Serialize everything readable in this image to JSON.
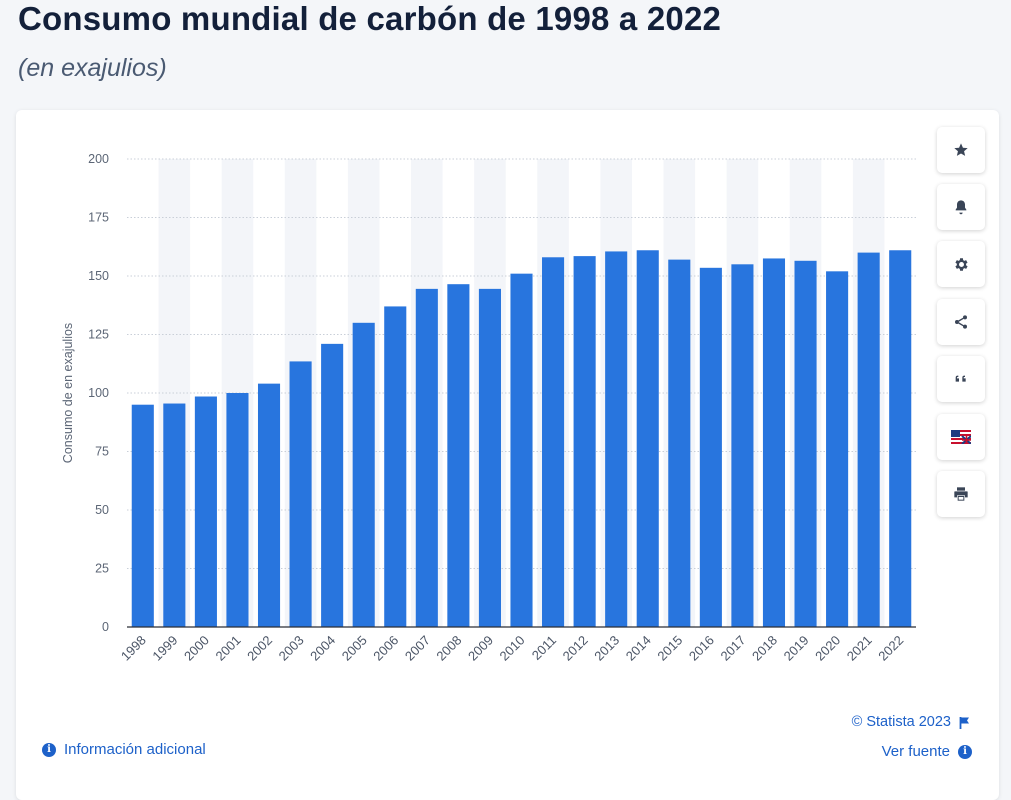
{
  "header": {
    "title": "Consumo mundial de carbón de 1998 a 2022",
    "subtitle": "(en exajulios)"
  },
  "chart_data": {
    "type": "bar",
    "categories": [
      "1998",
      "1999",
      "2000",
      "2001",
      "2002",
      "2003",
      "2004",
      "2005",
      "2006",
      "2007",
      "2008",
      "2009",
      "2010",
      "2011",
      "2012",
      "2013",
      "2014",
      "2015",
      "2016",
      "2017",
      "2018",
      "2019",
      "2020",
      "2021",
      "2022"
    ],
    "values": [
      95,
      95.5,
      98.5,
      100,
      104,
      113.5,
      121,
      130,
      137,
      144.5,
      146.5,
      144.5,
      151,
      158,
      158.5,
      160.5,
      161,
      157,
      153.5,
      155,
      157.5,
      156.5,
      152,
      160,
      161
    ],
    "ylabel": "Consumo de en exajulios",
    "xlabel": "",
    "ylim": [
      0,
      200
    ],
    "yticks": [
      0,
      25,
      50,
      75,
      100,
      125,
      150,
      175,
      200
    ],
    "grid": true,
    "bar_color": "#2875de",
    "alt_band_color": "#f3f5f9"
  },
  "sidebar": {
    "buttons": [
      {
        "name": "star-icon",
        "label": "favorite"
      },
      {
        "name": "bell-icon",
        "label": "alert"
      },
      {
        "name": "gear-icon",
        "label": "settings"
      },
      {
        "name": "share-icon",
        "label": "share"
      },
      {
        "name": "quote-icon",
        "label": "cite"
      },
      {
        "name": "flag-icon",
        "label": "language"
      },
      {
        "name": "print-icon",
        "label": "print"
      }
    ]
  },
  "footer": {
    "info_label": "Información adicional",
    "copyright": "© Statista 2023",
    "source_label": "Ver fuente"
  },
  "colors": {
    "accent": "#1d61c9",
    "icon": "#3a4557"
  }
}
